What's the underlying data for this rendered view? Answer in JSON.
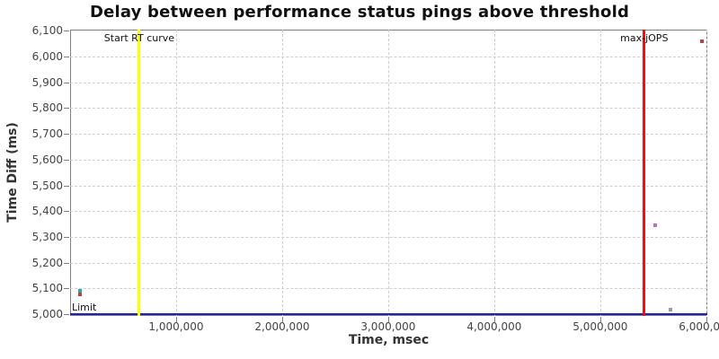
{
  "chart_data": {
    "type": "scatter",
    "title": "Delay between performance status pings above threshold",
    "xlabel": "Time, msec",
    "ylabel": "Time Diff (ms)",
    "xlim": [
      0,
      6010000
    ],
    "ylim": [
      4993,
      6105
    ],
    "x_ticks": [
      1000000,
      2000000,
      3000000,
      4000000,
      5000000,
      6000000
    ],
    "y_ticks": [
      5000,
      5100,
      5200,
      5300,
      5400,
      5500,
      5600,
      5700,
      5800,
      5900,
      6000,
      6100
    ],
    "grid": true,
    "legend": "none",
    "colors": {
      "grid": "#cfcfcf",
      "border": "#7f7f7f",
      "start_rt_line": "#ffff00",
      "max_jops_line": "#ee1111",
      "limit_line": "#2020c0"
    },
    "points": [
      {
        "x": 95000,
        "y": 5090,
        "color": "#2fa8b4",
        "name": "point-teal-left"
      },
      {
        "x": 95000,
        "y": 5075,
        "color": "#b94343",
        "name": "point-red-left"
      },
      {
        "x": 5520000,
        "y": 5345,
        "color": "#c869c8",
        "name": "point-magenta"
      },
      {
        "x": 5660000,
        "y": 5018,
        "color": "#9b9b9b",
        "name": "point-gray"
      },
      {
        "x": 5960000,
        "y": 6060,
        "color": "#b94343",
        "name": "point-red-top-right"
      }
    ],
    "vlines": [
      {
        "x": 652000,
        "color": "#ffff00",
        "label": "Start RT curve",
        "name": "start-rt-curve"
      },
      {
        "x": 5415000,
        "color": "#ee1111",
        "label": "max-jOPS",
        "name": "max-jops"
      }
    ],
    "hlines": [
      {
        "y": 5000,
        "color": "#2020c0",
        "label": "Limit",
        "name": "limit"
      }
    ]
  }
}
